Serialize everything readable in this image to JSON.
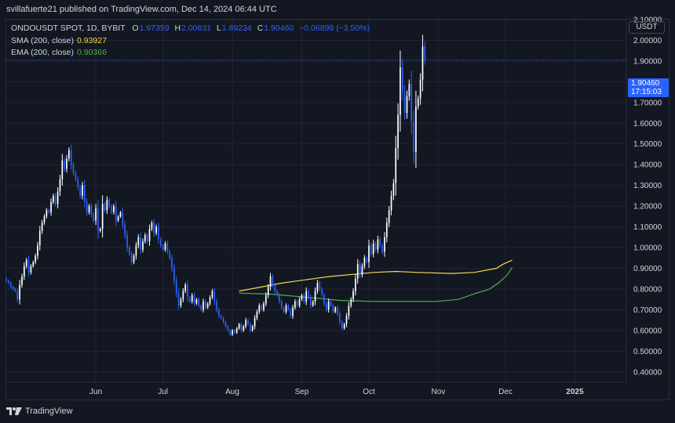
{
  "header": {
    "publish_line": "svillafuerte21 published on TradingView.com, Dec 14, 2024 06:44 UTC"
  },
  "legend": {
    "symbol": "ONDOUSDT SPOT, 1D, BYBIT",
    "o_label": "O",
    "o_value": "1.97359",
    "h_label": "H",
    "h_value": "2.00831",
    "l_label": "L",
    "l_value": "1.89234",
    "c_label": "C",
    "c_value": "1.90460",
    "change": "−0.06899 (−3.50%)",
    "sma_label": "SMA (200, close)",
    "sma_value": "0.93927",
    "ema_label": "EMA (200, close)",
    "ema_value": "0.90366"
  },
  "price_axis": {
    "currency": "USDT",
    "last_price": "1.90460",
    "countdown": "17:15:03"
  },
  "footer": {
    "brand": "TradingView"
  },
  "colors": {
    "background": "#131722",
    "grid": "#232632",
    "candle_up": "#ffffff",
    "candle_down": "#2962ff",
    "sma": "#f0d94c",
    "ema": "#4caf50",
    "last_price": "#2962ff"
  },
  "chart_data": {
    "type": "candlestick",
    "symbol": "ONDOUSDT",
    "interval": "1D",
    "ylim": [
      0.35,
      2.1
    ],
    "yticks": [
      0.4,
      0.5,
      0.6,
      0.7,
      0.8,
      0.9,
      1.0,
      1.1,
      1.2,
      1.3,
      1.4,
      1.5,
      1.6,
      1.7,
      1.8,
      1.9,
      2.0,
      2.1
    ],
    "x_ticks": [
      "Jun",
      "Jul",
      "Aug",
      "Sep",
      "Oct",
      "Nov",
      "Dec",
      "2025"
    ],
    "x_tick_dates": [
      "2024-06-01",
      "2024-07-01",
      "2024-08-01",
      "2024-09-01",
      "2024-10-01",
      "2024-11-01",
      "2024-12-01",
      "2025-01-01"
    ],
    "date_range": [
      "2024-04-22",
      "2025-01-24"
    ],
    "candles_start": "2024-04-22",
    "candles_close": [
      0.84,
      0.83,
      0.81,
      0.8,
      0.79,
      0.75,
      0.82,
      0.86,
      0.91,
      0.94,
      0.88,
      0.91,
      0.93,
      0.96,
      1.01,
      1.08,
      1.12,
      1.15,
      1.18,
      1.17,
      1.22,
      1.25,
      1.21,
      1.27,
      1.33,
      1.42,
      1.38,
      1.43,
      1.47,
      1.4,
      1.36,
      1.33,
      1.29,
      1.25,
      1.3,
      1.22,
      1.17,
      1.2,
      1.16,
      1.13,
      1.19,
      1.08,
      1.09,
      1.21,
      1.18,
      1.23,
      1.2,
      1.17,
      1.2,
      1.13,
      1.15,
      1.17,
      1.11,
      1.06,
      1.0,
      0.97,
      0.93,
      0.96,
      1.01,
      1.05,
      0.99,
      1.03,
      1.06,
      1.03,
      1.09,
      1.12,
      1.07,
      1.1,
      1.04,
      1.01,
      0.99,
      1.02,
      0.98,
      0.95,
      0.9,
      0.84,
      0.78,
      0.72,
      0.75,
      0.79,
      0.82,
      0.76,
      0.74,
      0.77,
      0.73,
      0.75,
      0.72,
      0.7,
      0.74,
      0.71,
      0.73,
      0.76,
      0.79,
      0.74,
      0.7,
      0.67,
      0.66,
      0.64,
      0.62,
      0.6,
      0.58,
      0.6,
      0.59,
      0.61,
      0.63,
      0.6,
      0.62,
      0.65,
      0.63,
      0.6,
      0.62,
      0.66,
      0.69,
      0.72,
      0.7,
      0.73,
      0.77,
      0.81,
      0.86,
      0.82,
      0.79,
      0.77,
      0.74,
      0.71,
      0.69,
      0.72,
      0.7,
      0.67,
      0.71,
      0.74,
      0.72,
      0.75,
      0.77,
      0.74,
      0.79,
      0.76,
      0.72,
      0.74,
      0.79,
      0.83,
      0.8,
      0.77,
      0.73,
      0.7,
      0.74,
      0.72,
      0.69,
      0.71,
      0.68,
      0.64,
      0.61,
      0.63,
      0.67,
      0.72,
      0.75,
      0.79,
      0.85,
      0.92,
      0.87,
      0.91,
      0.95,
      0.93,
      1.01,
      0.97,
      1.02,
      0.99,
      1.04,
      1.01,
      0.98,
      1.05,
      1.12,
      1.18,
      1.25,
      1.31,
      1.48,
      1.64,
      1.87,
      1.75,
      1.65,
      1.73,
      1.79,
      1.61,
      1.46,
      1.68,
      1.72,
      1.81,
      1.97,
      1.9046
    ],
    "sma_200": {
      "start": "2024-08-04",
      "points": [
        [
          0,
          0.79
        ],
        [
          20,
          0.83
        ],
        [
          40,
          0.86
        ],
        [
          60,
          0.88
        ],
        [
          70,
          0.885
        ],
        [
          80,
          0.88
        ],
        [
          95,
          0.875
        ],
        [
          105,
          0.88
        ],
        [
          115,
          0.9
        ],
        [
          118,
          0.92
        ],
        [
          122,
          0.939
        ]
      ]
    },
    "ema_200": {
      "start": "2024-08-04",
      "points": [
        [
          0,
          0.78
        ],
        [
          15,
          0.775
        ],
        [
          30,
          0.76
        ],
        [
          45,
          0.745
        ],
        [
          60,
          0.74
        ],
        [
          75,
          0.74
        ],
        [
          88,
          0.74
        ],
        [
          98,
          0.75
        ],
        [
          106,
          0.78
        ],
        [
          112,
          0.8
        ],
        [
          116,
          0.83
        ],
        [
          120,
          0.87
        ],
        [
          122,
          0.904
        ]
      ]
    }
  }
}
